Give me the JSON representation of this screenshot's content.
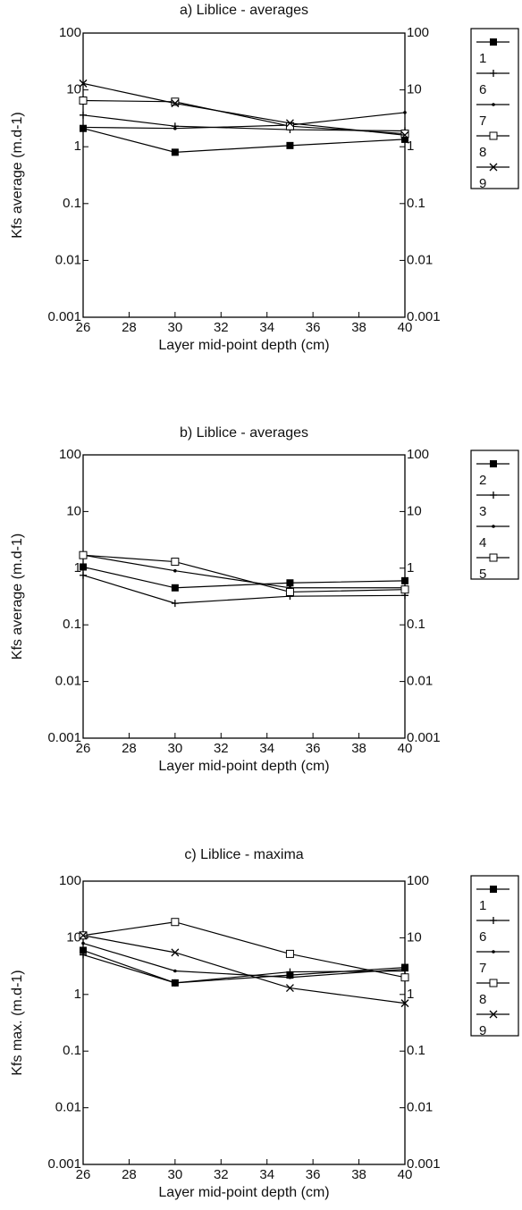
{
  "chart_data": [
    {
      "type": "line",
      "title": "a) Liblice - averages",
      "xlabel": "Layer mid-point depth (cm)",
      "ylabel": "Kfs average (m.d-1)",
      "x": [
        26,
        30,
        35,
        40
      ],
      "xlim": [
        26,
        40
      ],
      "xticks": [
        26,
        28,
        30,
        32,
        34,
        36,
        38,
        40
      ],
      "ylim": [
        0.001,
        100
      ],
      "yticks": [
        0.001,
        0.01,
        0.1,
        1,
        10,
        100
      ],
      "log_y": true,
      "series": [
        {
          "name": "1",
          "color": "#000000",
          "marker": "filled-square",
          "values": [
            2.1,
            0.8,
            1.05,
            1.35
          ]
        },
        {
          "name": "6",
          "color": "#000000",
          "marker": "plus",
          "values": [
            3.6,
            2.3,
            2.0,
            1.9
          ]
        },
        {
          "name": "7",
          "color": "#000000",
          "marker": "dot",
          "values": [
            2.2,
            2.1,
            2.4,
            4
          ]
        },
        {
          "name": "8",
          "color": "#000000",
          "marker": "open-square",
          "values": [
            6.5,
            6.2,
            2.3,
            1.7
          ]
        },
        {
          "name": "9",
          "color": "#000000",
          "marker": "cross",
          "values": [
            13,
            5.8,
            2.6,
            1.6
          ]
        }
      ]
    },
    {
      "type": "line",
      "title": "b) Liblice - averages",
      "xlabel": "Layer mid-point depth (cm)",
      "ylabel": "Kfs average (m.d-1)",
      "x": [
        26,
        30,
        35,
        40
      ],
      "xlim": [
        26,
        40
      ],
      "xticks": [
        26,
        28,
        30,
        32,
        34,
        36,
        38,
        40
      ],
      "ylim": [
        0.001,
        100
      ],
      "yticks": [
        0.001,
        0.01,
        0.1,
        1,
        10,
        100
      ],
      "log_y": true,
      "series": [
        {
          "name": "2",
          "color": "#000000",
          "marker": "filled-square",
          "values": [
            1.05,
            0.45,
            0.55,
            0.6
          ]
        },
        {
          "name": "3",
          "color": "#000000",
          "marker": "plus",
          "values": [
            0.75,
            0.24,
            0.32,
            0.33
          ]
        },
        {
          "name": "4",
          "color": "#000000",
          "marker": "dot",
          "values": [
            1.7,
            0.9,
            0.45,
            0.45
          ]
        },
        {
          "name": "5",
          "color": "#000000",
          "marker": "open-square",
          "values": [
            1.7,
            1.3,
            0.38,
            0.42
          ]
        }
      ]
    },
    {
      "type": "line",
      "title": "c) Liblice - maxima",
      "xlabel": "Layer mid-point depth (cm)",
      "ylabel": "Kfs max. (m.d-1)",
      "x": [
        26,
        30,
        35,
        40
      ],
      "xlim": [
        26,
        40
      ],
      "xticks": [
        26,
        28,
        30,
        32,
        34,
        36,
        38,
        40
      ],
      "ylim": [
        0.001,
        100
      ],
      "yticks": [
        0.001,
        0.01,
        0.1,
        1,
        10,
        100
      ],
      "log_y": true,
      "series": [
        {
          "name": "1",
          "color": "#000000",
          "marker": "filled-square",
          "values": [
            6,
            1.6,
            2.2,
            3
          ]
        },
        {
          "name": "6",
          "color": "#000000",
          "marker": "plus",
          "values": [
            5,
            1.6,
            2.5,
            2.6
          ]
        },
        {
          "name": "7",
          "color": "#000000",
          "marker": "dot",
          "values": [
            8,
            2.6,
            2.0,
            2.8
          ]
        },
        {
          "name": "8",
          "color": "#000000",
          "marker": "open-square",
          "values": [
            11,
            19,
            5.2,
            2.0
          ]
        },
        {
          "name": "9",
          "color": "#000000",
          "marker": "cross",
          "values": [
            11,
            5.5,
            1.3,
            0.7
          ]
        }
      ]
    }
  ]
}
